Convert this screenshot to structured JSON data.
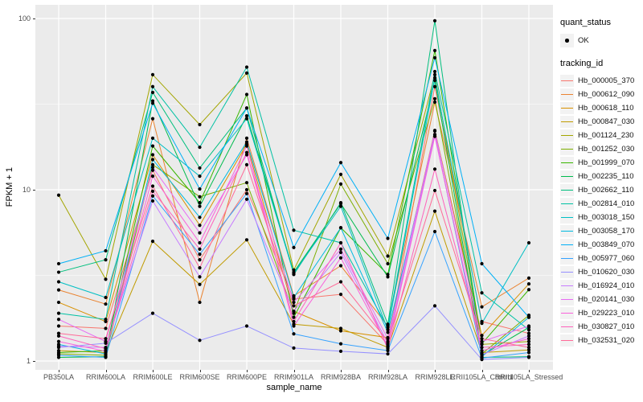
{
  "figure": {
    "y_axis_title": "FPKM + 1",
    "x_axis_title": "sample_name"
  },
  "legend": {
    "quant_status_title": "quant_status",
    "ok_label": "OK",
    "tracking_id_title": "tracking_id",
    "key_fill": "#F2F2F2",
    "ok_marker_color": "#000000"
  },
  "style_colors": {
    "panel_background": "#EBEBEB",
    "gridline": "#FFFFFF",
    "tick_label": "#4d4d4d",
    "tick_mark": "#333333",
    "point": "#000000"
  },
  "chart_data": {
    "type": "line",
    "title": "",
    "xlabel": "sample_name",
    "ylabel": "FPKM + 1",
    "y_scale": "log10",
    "y_ticks": [
      1,
      10,
      100
    ],
    "y_minor_ticks": [
      3.1623,
      31.623
    ],
    "ylim": [
      0.89,
      120
    ],
    "grid": true,
    "legend_position": "right",
    "quant_status": "OK",
    "categories": [
      "PB350LA",
      "RRIM600LA",
      "RRIM600LE",
      "RRIM600SE",
      "RRIM600PE",
      "RRIM901LA",
      "RRIM928BA",
      "RRIM928LA",
      "RRIM928LE",
      "RRII105LA_Control",
      "RRII105LA_Stressed"
    ],
    "series": [
      {
        "name": "Hb_000005_370",
        "color": "#F8766D",
        "values": [
          1.6,
          1.55,
          13,
          3.9,
          10,
          2.3,
          2.45,
          1.25,
          40,
          1.7,
          1.45
        ]
      },
      {
        "name": "Hb_000612_090",
        "color": "#EA8331",
        "values": [
          2.6,
          2.15,
          26,
          2.2,
          20,
          2.4,
          3.6,
          1.6,
          32.5,
          2.07,
          3.05
        ]
      },
      {
        "name": "Hb_000618_110",
        "color": "#D89000",
        "values": [
          2.2,
          1.7,
          16,
          6.2,
          18.5,
          1.95,
          1.5,
          1.37,
          22.2,
          1.41,
          2.82
        ]
      },
      {
        "name": "Hb_000847_030",
        "color": "#C09B00",
        "values": [
          1.15,
          1.12,
          5.0,
          2.8,
          5.1,
          1.64,
          1.55,
          1.2,
          7.5,
          1.12,
          1.16
        ]
      },
      {
        "name": "Hb_001124_230",
        "color": "#A3A500",
        "values": [
          9.3,
          3.0,
          47,
          24,
          48,
          3.4,
          12.3,
          4.1,
          47,
          1.25,
          1.3
        ]
      },
      {
        "name": "Hb_001252_030",
        "color": "#7CAE00",
        "values": [
          1.1,
          1.08,
          14,
          9.1,
          11,
          1.9,
          10.8,
          3.7,
          34,
          1.1,
          1.85
        ]
      },
      {
        "name": "Hb_001999_070",
        "color": "#39B600",
        "values": [
          1.12,
          1.15,
          18,
          8.4,
          36,
          1.8,
          6.0,
          3.2,
          65,
          1.26,
          2.61
        ]
      },
      {
        "name": "Hb_002235_110",
        "color": "#00BB4E",
        "values": [
          1.05,
          1.06,
          33,
          8.0,
          27,
          3.3,
          8.3,
          3.1,
          43.5,
          1.08,
          1.57
        ]
      },
      {
        "name": "Hb_002662_110",
        "color": "#00BF7D",
        "values": [
          3.3,
          3.9,
          37,
          13.4,
          30,
          3.2,
          8.4,
          1.64,
          97,
          1.05,
          1.06
        ]
      },
      {
        "name": "Hb_002814_010",
        "color": "#00C1A3",
        "values": [
          1.9,
          1.75,
          40,
          17.7,
          52,
          5.8,
          4.9,
          1.57,
          49,
          2.5,
          1.52
        ]
      },
      {
        "name": "Hb_003018_150",
        "color": "#00BFC4",
        "values": [
          2.9,
          2.35,
          20,
          12,
          26,
          3.25,
          8.0,
          1.52,
          45,
          1.66,
          4.9
        ]
      },
      {
        "name": "Hb_003058_170",
        "color": "#00BAE0",
        "values": [
          1.25,
          1.1,
          15,
          6.9,
          19,
          2.35,
          6.0,
          1.47,
          21,
          1.06,
          1.8
        ]
      },
      {
        "name": "Hb_003849_070",
        "color": "#00B0F6",
        "values": [
          3.7,
          4.4,
          32,
          10.1,
          30,
          4.6,
          14.4,
          5.2,
          59,
          3.7,
          1.8
        ]
      },
      {
        "name": "Hb_005977_060",
        "color": "#35A2FF",
        "values": [
          1.08,
          1.05,
          9.2,
          4.2,
          9.5,
          1.44,
          1.26,
          1.15,
          5.7,
          1.04,
          1.12
        ]
      },
      {
        "name": "Hb_010620_030",
        "color": "#9590FF",
        "values": [
          1.2,
          1.27,
          1.9,
          1.32,
          1.6,
          1.19,
          1.14,
          1.1,
          2.1,
          1.02,
          1.05
        ]
      },
      {
        "name": "Hb_016924_010",
        "color": "#C77CFF",
        "values": [
          1.22,
          1.2,
          8.6,
          3.1,
          8.8,
          1.95,
          4.3,
          1.27,
          21,
          1.09,
          1.4
        ]
      },
      {
        "name": "Hb_020141_030",
        "color": "#E76BF3",
        "values": [
          1.75,
          1.3,
          13.5,
          5.6,
          16,
          2.2,
          4.5,
          1.35,
          22,
          1.3,
          1.6
        ]
      },
      {
        "name": "Hb_029223_010",
        "color": "#FA62DB",
        "values": [
          1.3,
          1.14,
          12,
          4.9,
          18,
          1.6,
          4.0,
          1.22,
          20.5,
          1.15,
          1.35
        ]
      },
      {
        "name": "Hb_030827_010",
        "color": "#FF62BC",
        "values": [
          1.4,
          1.18,
          9.8,
          4.5,
          16.5,
          1.7,
          4.9,
          1.18,
          13.2,
          1.2,
          1.25
        ]
      },
      {
        "name": "Hb_032531_020",
        "color": "#FF6A98",
        "values": [
          1.45,
          1.35,
          10.5,
          3.5,
          14,
          2.1,
          2.9,
          1.3,
          9.9,
          1.35,
          1.2
        ]
      }
    ]
  }
}
